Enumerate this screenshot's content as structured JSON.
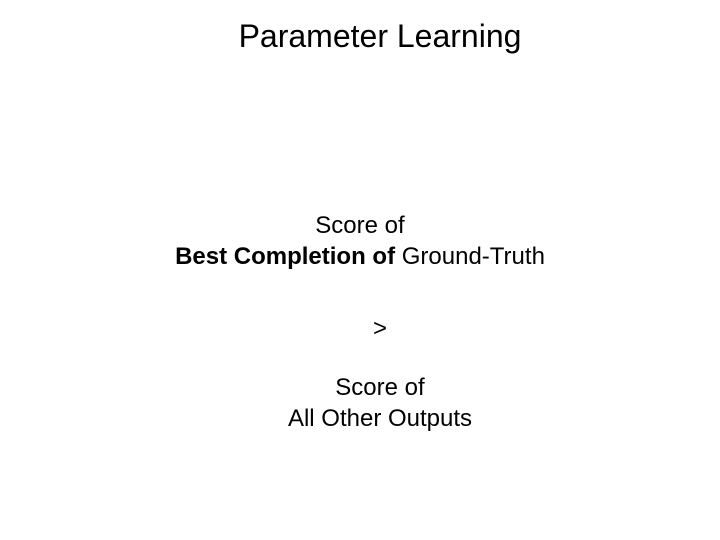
{
  "title": "Parameter Learning",
  "block1": {
    "line1": "Score of",
    "line2_bold": "Best Completion of",
    "line2_rest": " Ground-Truth"
  },
  "comparator": ">",
  "block2": {
    "line1": "Score of",
    "line2": "All Other Outputs"
  },
  "styling": {
    "background_color": "#ffffff",
    "text_color": "#000000",
    "title_fontsize": 32,
    "body_fontsize": 24,
    "font_family": "Arial"
  }
}
